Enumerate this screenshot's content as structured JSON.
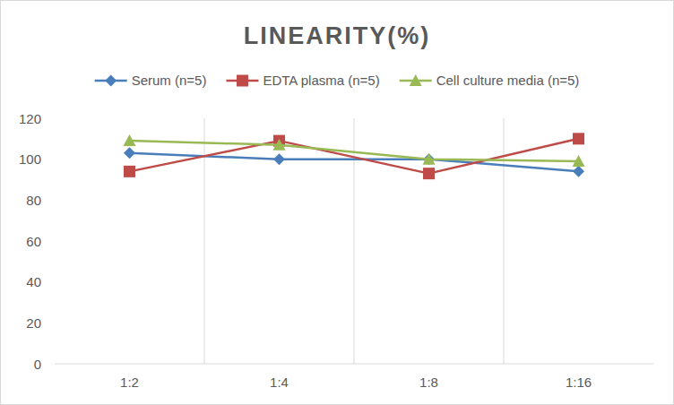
{
  "chart_data": {
    "type": "line",
    "title": "LINEARITY(%)",
    "categories": [
      "1:2",
      "1:4",
      "1:8",
      "1:16"
    ],
    "series": [
      {
        "name": "Serum (n=5)",
        "color": "#4a7ebb",
        "marker": "diamond",
        "values": [
          103,
          100,
          100,
          94
        ]
      },
      {
        "name": "EDTA plasma (n=5)",
        "color": "#be4b48",
        "marker": "square",
        "values": [
          94,
          109,
          93,
          110
        ]
      },
      {
        "name": "Cell culture media (n=5)",
        "color": "#98b954",
        "marker": "triangle",
        "values": [
          109,
          107,
          100,
          99
        ]
      }
    ],
    "ylim": [
      0,
      120
    ],
    "yticks": [
      0,
      20,
      40,
      60,
      80,
      100,
      120
    ],
    "grid": true,
    "legend": "top"
  }
}
